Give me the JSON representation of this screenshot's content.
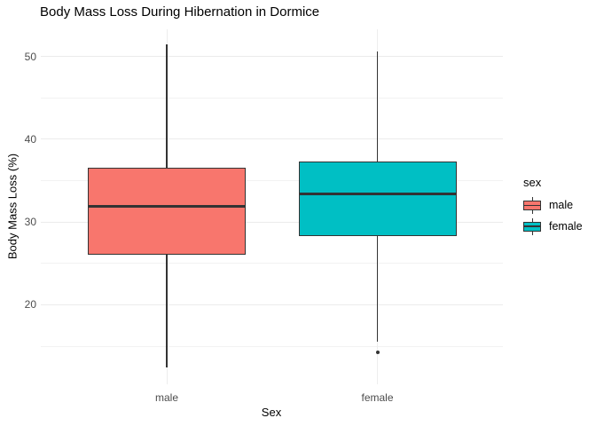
{
  "title": "Body Mass Loss During Hibernation in Dormice",
  "chart_data": {
    "type": "boxplot",
    "title": "Body Mass Loss During Hibernation in Dormice",
    "xlabel": "Sex",
    "ylabel": "Body Mass Loss (%)",
    "ylim": [
      10.5,
      53.3
    ],
    "y_major_ticks": [
      20,
      30,
      40,
      50
    ],
    "y_minor_ticks": [
      15,
      25,
      35,
      45
    ],
    "categories": [
      "male",
      "female"
    ],
    "grid": "on",
    "legend_position": "right",
    "legend": {
      "title": "sex",
      "entries": [
        {
          "label": "male",
          "color": "#F8766D"
        },
        {
          "label": "female",
          "color": "#00BFC4"
        }
      ]
    },
    "groups": [
      {
        "name": "male",
        "color": "#F8766D",
        "whisker_low": 12.4,
        "q1": 26.1,
        "median": 31.9,
        "q3": 36.5,
        "whisker_high": 51.4,
        "outliers": []
      },
      {
        "name": "female",
        "color": "#00BFC4",
        "whisker_low": 15.5,
        "q1": 28.3,
        "median": 33.4,
        "q3": 37.3,
        "whisker_high": 50.6,
        "outliers": [
          14.3
        ]
      }
    ],
    "colors": {
      "box_border": "#333333",
      "grid_major": "#EBEBEB",
      "grid_minor": "#F2F2F2",
      "axis_text": "#4D4D4D"
    }
  }
}
